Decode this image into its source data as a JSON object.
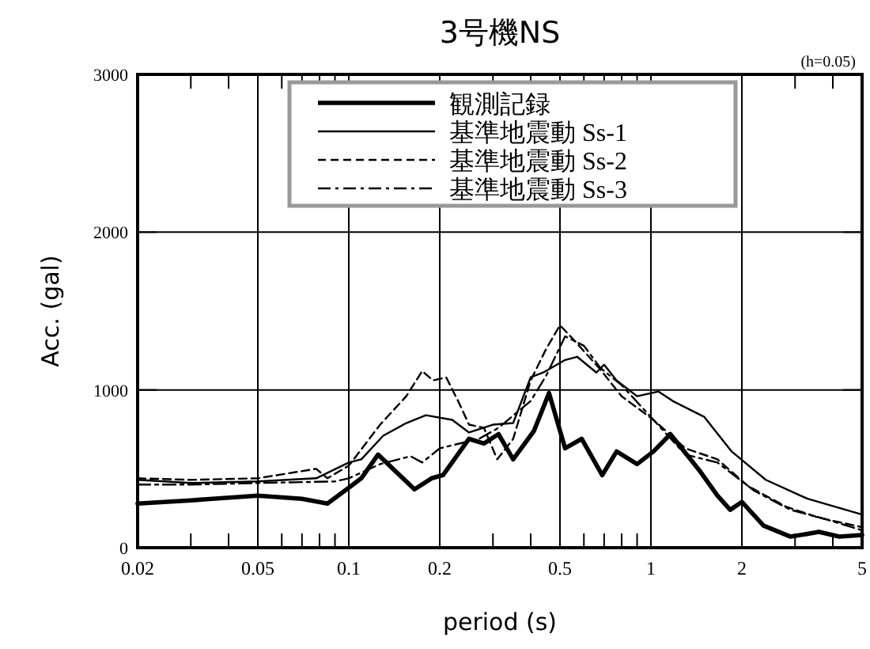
{
  "chart_data": {
    "type": "line",
    "title": "3号機NS",
    "xlabel": "period (s)",
    "ylabel": "Acc. (gal)",
    "annotations": [
      "(h=0.05)"
    ],
    "log": "x",
    "grid": true,
    "legend": "top right",
    "xlim": [
      0.02,
      5
    ],
    "ylim": [
      0,
      3000
    ],
    "xticks": [
      0.02,
      {
        "value": 0.03,
        "label": null
      },
      {
        "value": 0.04,
        "label": null
      },
      0.05,
      {
        "value": 0.06,
        "label": null
      },
      {
        "value": 0.07,
        "label": null
      },
      {
        "value": 0.08,
        "label": null
      },
      {
        "value": 0.09,
        "label": null
      },
      0.1,
      0.2,
      {
        "value": 0.3,
        "label": null
      },
      {
        "value": 0.4,
        "label": null
      },
      0.5,
      {
        "value": 0.6,
        "label": null
      },
      {
        "value": 0.7,
        "label": null
      },
      {
        "value": 0.8,
        "label": null
      },
      {
        "value": 0.9,
        "label": null
      },
      1,
      2,
      {
        "value": 3,
        "label": null
      },
      {
        "value": 4,
        "label": null
      },
      5
    ],
    "yticks": [
      0,
      1000,
      2000,
      3000
    ],
    "series": [
      {
        "name": "観測記録",
        "color": "#000000",
        "line_style": "solid",
        "x": [
          0.02,
          0.03,
          0.05,
          0.07,
          0.085,
          0.1,
          0.11,
          0.125,
          0.165,
          0.188,
          0.205,
          0.25,
          0.28,
          0.313,
          0.35,
          0.41,
          0.46,
          0.52,
          0.59,
          0.69,
          0.77,
          0.9,
          1.02,
          1.16,
          1.46,
          1.66,
          1.83,
          2.0,
          2.36,
          2.9,
          3.6,
          4.2,
          5
        ],
        "values": [
          280,
          300,
          330,
          310,
          280,
          380,
          440,
          590,
          370,
          440,
          460,
          690,
          660,
          720,
          560,
          740,
          980,
          630,
          690,
          460,
          610,
          530,
          610,
          720,
          480,
          330,
          240,
          290,
          140,
          70,
          100,
          70,
          80
        ]
      },
      {
        "name": "基準地震動 Ss-1",
        "color": "#000000",
        "line_style": "solid",
        "x": [
          0.02,
          0.03,
          0.05,
          0.078,
          0.1,
          0.11,
          0.13,
          0.155,
          0.18,
          0.22,
          0.25,
          0.3,
          0.35,
          0.4,
          0.44,
          0.52,
          0.57,
          0.66,
          0.7,
          0.77,
          0.9,
          1.06,
          1.18,
          1.33,
          1.5,
          1.85,
          2.4,
          3.3,
          5
        ],
        "values": [
          430,
          410,
          420,
          440,
          540,
          560,
          710,
          790,
          840,
          810,
          730,
          780,
          790,
          1080,
          1110,
          1190,
          1210,
          1110,
          1160,
          1060,
          960,
          990,
          930,
          880,
          830,
          610,
          430,
          310,
          210
        ]
      },
      {
        "name": "基準地震動 Ss-2",
        "color": "#000000",
        "line_style": "dashed",
        "x": [
          0.02,
          0.03,
          0.05,
          0.078,
          0.085,
          0.1,
          0.127,
          0.155,
          0.175,
          0.19,
          0.21,
          0.23,
          0.25,
          0.28,
          0.31,
          0.35,
          0.4,
          0.45,
          0.5,
          0.56,
          0.68,
          0.8,
          1.02,
          1.3,
          1.66,
          2.1,
          2.8,
          3.6,
          5
        ],
        "values": [
          440,
          430,
          440,
          500,
          440,
          520,
          780,
          960,
          1120,
          1060,
          1080,
          930,
          780,
          760,
          560,
          690,
          1060,
          1260,
          1410,
          1310,
          1130,
          960,
          810,
          630,
          560,
          390,
          260,
          190,
          130
        ]
      },
      {
        "name": "基準地震動 Ss-3",
        "color": "#000000",
        "line_style": "dashdot",
        "x": [
          0.02,
          0.03,
          0.05,
          0.09,
          0.1,
          0.127,
          0.16,
          0.175,
          0.2,
          0.27,
          0.313,
          0.4,
          0.45,
          0.52,
          0.6,
          0.68,
          0.8,
          1.02,
          1.3,
          1.66,
          2.2,
          2.9,
          3.8,
          5
        ],
        "values": [
          400,
          400,
          410,
          420,
          440,
          530,
          580,
          540,
          630,
          690,
          760,
          930,
          1090,
          1340,
          1280,
          1140,
          1030,
          810,
          590,
          540,
          360,
          240,
          180,
          110
        ]
      }
    ]
  }
}
